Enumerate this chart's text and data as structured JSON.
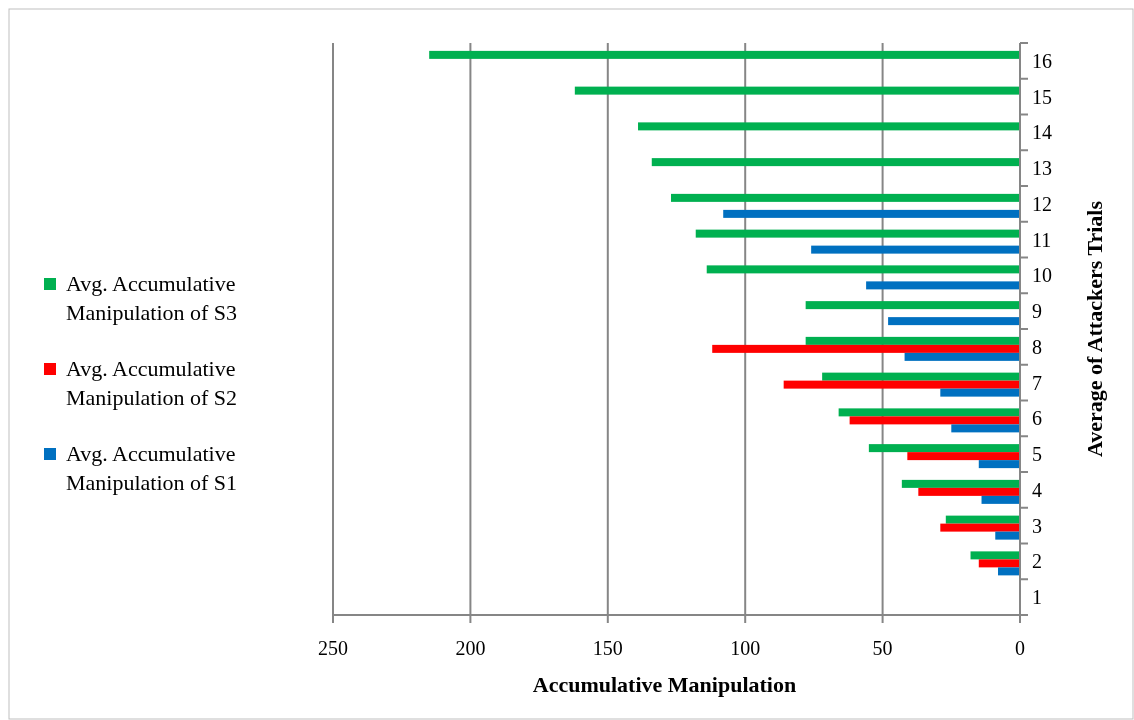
{
  "chart_data": {
    "type": "bar",
    "orientation": "horizontal",
    "xlabel": "Accumulative Manipulation",
    "ylabel": "Average of Attackers Trials",
    "categories": [
      "16",
      "15",
      "14",
      "13",
      "12",
      "11",
      "10",
      "9",
      "8",
      "7",
      "6",
      "5",
      "4",
      "3",
      "2",
      "1"
    ],
    "series": [
      {
        "name": "Avg. Accumulative Manipulation of S3",
        "color": "#00b050",
        "values": [
          215,
          162,
          139,
          134,
          127,
          118,
          114,
          78,
          78,
          72,
          66,
          55,
          43,
          27,
          18,
          null
        ]
      },
      {
        "name": "Avg. Accumulative Manipulation of S2",
        "color": "#ff0000",
        "values": [
          null,
          null,
          null,
          null,
          null,
          null,
          null,
          null,
          112,
          86,
          62,
          41,
          37,
          29,
          15,
          null
        ]
      },
      {
        "name": "Avg. Accumulative Manipulation of S1",
        "color": "#0070c0",
        "values": [
          null,
          null,
          null,
          null,
          108,
          76,
          56,
          48,
          42,
          29,
          25,
          15,
          14,
          9,
          8,
          null
        ]
      }
    ],
    "xlim": [
      250,
      0
    ],
    "xticks": [
      250,
      200,
      150,
      100,
      50,
      0
    ],
    "grid": "x",
    "legend": "left"
  }
}
